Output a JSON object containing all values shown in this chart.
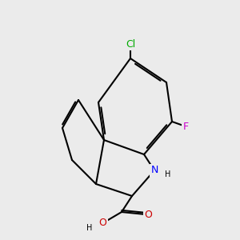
{
  "background_color": "#ebebeb",
  "bond_color": "#000000",
  "bond_width": 1.5,
  "atoms": {
    "Cl": {
      "color": "#00aa00",
      "fontsize": 9
    },
    "F": {
      "color": "#cc00cc",
      "fontsize": 9
    },
    "N": {
      "color": "#0000ff",
      "fontsize": 9
    },
    "O_red": {
      "color": "#cc0000",
      "fontsize": 9
    },
    "H": {
      "color": "#000000",
      "fontsize": 8
    }
  },
  "figsize": [
    3.0,
    3.0
  ],
  "dpi": 100
}
